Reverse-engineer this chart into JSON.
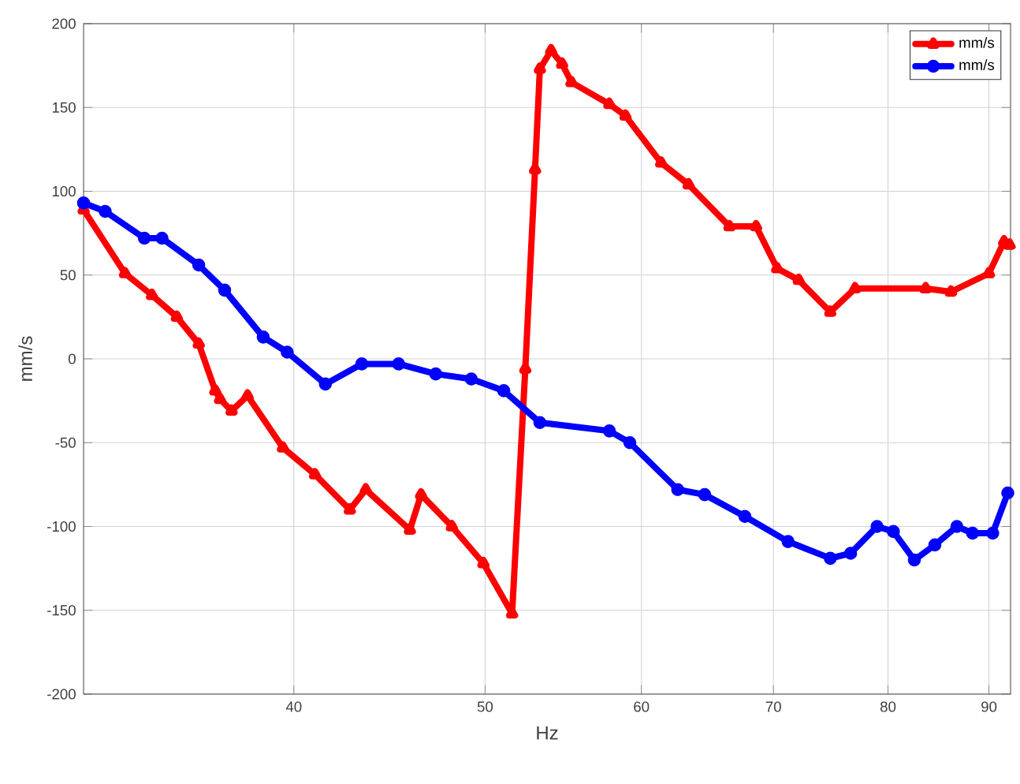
{
  "chart_data": {
    "type": "line",
    "xlabel": "Hz",
    "ylabel": "mm/s",
    "log": "x",
    "grid": true,
    "legend": "top right",
    "xlim": [
      31.3,
      92.3
    ],
    "ylim": [
      -200,
      200
    ],
    "xticks": [
      40,
      50,
      60,
      70,
      80,
      90
    ],
    "yticks": [
      -200,
      -150,
      -100,
      -50,
      0,
      50,
      100,
      150,
      200
    ],
    "series": [
      {
        "name": "mm/s",
        "color": "#ff0000",
        "marker": "triangle",
        "x": [
          31.3,
          32.85,
          33.9,
          34.9,
          35.8,
          36.5,
          36.7,
          37.2,
          37.9,
          39.5,
          41.0,
          42.7,
          43.5,
          45.8,
          46.4,
          48.1,
          49.9,
          51.6,
          52.4,
          53.0,
          53.3,
          54.0,
          54.7,
          55.3,
          57.8,
          58.9,
          61.4,
          63.4,
          66.5,
          68.6,
          70.3,
          72.1,
          74.8,
          77.0,
          83.6,
          86.1,
          90.0,
          91.6,
          92.2
        ],
        "values": [
          89,
          51,
          38,
          25,
          9,
          -19,
          -24,
          -31,
          -22,
          -53,
          -69,
          -90,
          -78,
          -102,
          -81,
          -100,
          -122,
          -152,
          -6,
          113,
          173,
          184,
          176,
          165,
          152,
          145,
          117,
          104,
          79,
          79,
          54,
          47,
          28,
          42,
          42,
          40,
          51,
          70,
          68
        ]
      },
      {
        "name": "mm/s",
        "color": "#0000ff",
        "marker": "circle",
        "x": [
          31.3,
          32.1,
          33.6,
          34.3,
          35.8,
          36.9,
          38.6,
          39.7,
          41.5,
          43.3,
          45.2,
          47.2,
          49.2,
          51.1,
          53.3,
          57.8,
          59.2,
          62.6,
          64.6,
          67.7,
          71.2,
          74.8,
          76.6,
          79.0,
          80.5,
          82.5,
          84.5,
          86.7,
          88.3,
          90.4,
          92.0
        ],
        "values": [
          93,
          88,
          72,
          72,
          56,
          41,
          13,
          4,
          -15,
          -3,
          -3,
          -9,
          -12,
          -19,
          -38,
          -43,
          -50,
          -78,
          -81,
          -94,
          -109,
          -119,
          -116,
          -100,
          -103,
          -120,
          -111,
          -100,
          -104,
          -104,
          -80
        ]
      }
    ]
  }
}
